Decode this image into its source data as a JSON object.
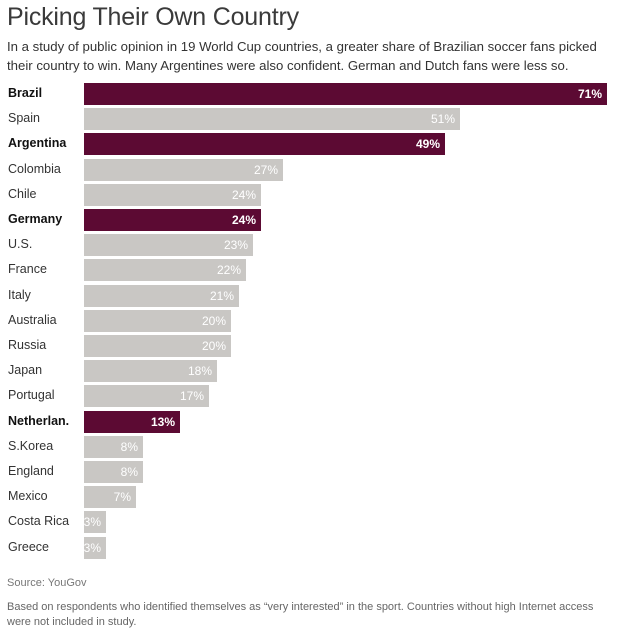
{
  "title": "Picking Their Own Country",
  "subtitle": "In a study of public opinion in 19 World Cup countries, a greater share of Brazilian soccer fans picked their country to win. Many Argentines were also confident. German and Dutch fans were less so.",
  "source": "Source: YouGov",
  "note": "Based on respondents who identified themselves as “very interested” in the sport. Countries without high Internet access were not included in study.",
  "colors": {
    "highlight": "#5c0a33",
    "default": "#c9c7c4"
  },
  "chart_data": {
    "type": "bar",
    "orientation": "horizontal",
    "unit": "%",
    "xlim": [
      0,
      71
    ],
    "categories": [
      "Brazil",
      "Spain",
      "Argentina",
      "Colombia",
      "Chile",
      "Germany",
      "U.S.",
      "France",
      "Italy",
      "Australia",
      "Russia",
      "Japan",
      "Portugal",
      "Netherlan.",
      "S.Korea",
      "England",
      "Mexico",
      "Costa Rica",
      "Greece"
    ],
    "values": [
      71,
      51,
      49,
      27,
      24,
      24,
      23,
      22,
      21,
      20,
      20,
      18,
      17,
      13,
      8,
      8,
      7,
      3,
      3
    ],
    "value_labels": [
      "71%",
      "51%",
      "49%",
      "27%",
      "24%",
      "24%",
      "23%",
      "22%",
      "21%",
      "20%",
      "20%",
      "18%",
      "17%",
      "13%",
      "8%",
      "8%",
      "7%",
      "3%",
      "3%"
    ],
    "highlighted": [
      "Brazil",
      "Argentina",
      "Germany",
      "Netherlan."
    ]
  }
}
